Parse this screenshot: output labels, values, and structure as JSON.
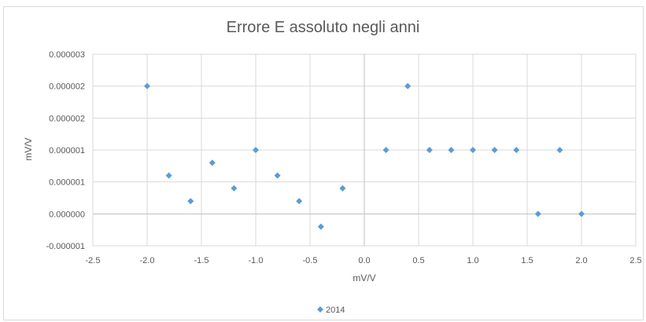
{
  "chart_data": {
    "type": "scatter",
    "title": "Errore E assoluto negli anni",
    "xlabel": "mV/V",
    "ylabel": "mV/V",
    "xlim": [
      -2.5,
      2.5
    ],
    "ylim": [
      -5e-07,
      2.5e-06
    ],
    "x_ticks": [
      "-2.5",
      "-2.0",
      "-1.5",
      "-1.0",
      "-0.5",
      "0.0",
      "0.5",
      "1.0",
      "1.5",
      "2.0",
      "2.5"
    ],
    "y_ticks": [
      "-0.000001",
      "0.000000",
      "0.000001",
      "0.000001",
      "0.000002",
      "0.000002",
      "0.000003"
    ],
    "grid": true,
    "legend_position": "bottom",
    "series": [
      {
        "name": "2014",
        "color": "#5b9bd5",
        "marker": "diamond",
        "points": [
          [
            -2.0,
            2e-06
          ],
          [
            -1.8,
            6e-07
          ],
          [
            -1.6,
            2e-07
          ],
          [
            -1.4,
            8e-07
          ],
          [
            -1.2,
            4e-07
          ],
          [
            -1.0,
            1e-06
          ],
          [
            -0.8,
            6e-07
          ],
          [
            -0.6,
            2e-07
          ],
          [
            -0.4,
            -2e-07
          ],
          [
            -0.2,
            4e-07
          ],
          [
            0.2,
            1e-06
          ],
          [
            0.4,
            2e-06
          ],
          [
            0.6,
            1e-06
          ],
          [
            0.8,
            1e-06
          ],
          [
            1.0,
            1e-06
          ],
          [
            1.2,
            1e-06
          ],
          [
            1.4,
            1e-06
          ],
          [
            1.6,
            0.0
          ],
          [
            1.8,
            1e-06
          ],
          [
            2.0,
            0.0
          ]
        ]
      }
    ]
  }
}
